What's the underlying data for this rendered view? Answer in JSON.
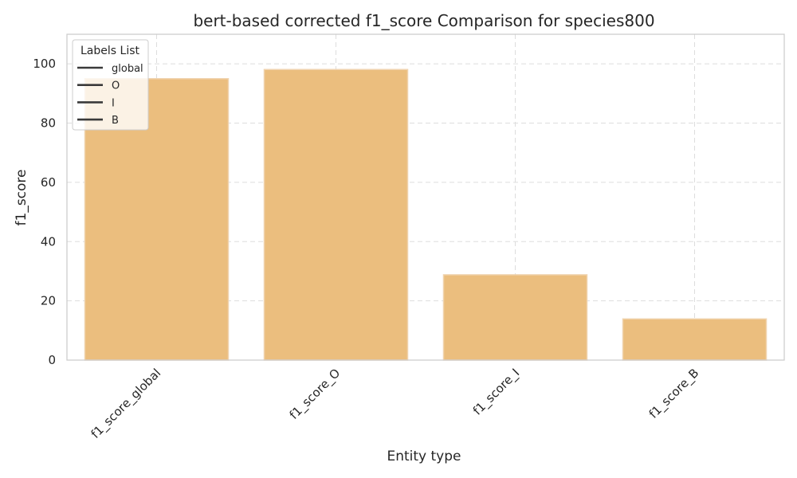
{
  "chart_data": {
    "type": "bar",
    "title": "bert-based corrected f1_score Comparison for species800",
    "xlabel": "Entity type",
    "ylabel": "f1_score",
    "categories": [
      "f1_score_global",
      "f1_score_O",
      "f1_score_I",
      "f1_score_B"
    ],
    "values": [
      95.0,
      98.1,
      28.8,
      13.9
    ],
    "ylim": [
      0,
      110
    ],
    "yticks": [
      0,
      20,
      40,
      60,
      80,
      100
    ],
    "grid": true,
    "bar_color": "#EBBE7E",
    "bar_edge_color": "#F0D3AE",
    "legend": {
      "title": "Labels List",
      "placement": "top-left",
      "entries": [
        "global",
        "O",
        "I",
        "B"
      ],
      "line_color": "#3a3a3a"
    }
  }
}
